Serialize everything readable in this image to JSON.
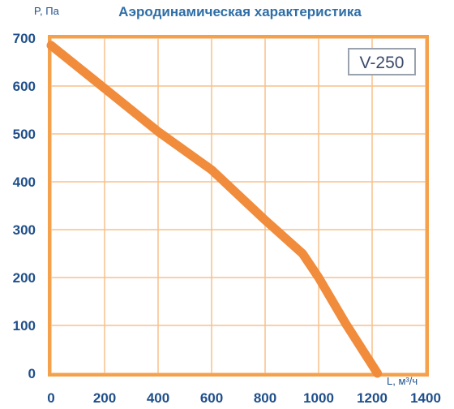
{
  "chart_data": {
    "type": "line",
    "title": "Аэродинамическая  характеристика",
    "xlabel": "L, м³/ч",
    "ylabel": "P, Па",
    "xlim": [
      0,
      1400
    ],
    "ylim": [
      0,
      700
    ],
    "x_ticks": [
      "0",
      "200",
      "400",
      "600",
      "800",
      "1000",
      "1200",
      "1400"
    ],
    "y_ticks": [
      "0",
      "100",
      "200",
      "300",
      "400",
      "500",
      "600",
      "700"
    ],
    "annotation": "V-250",
    "grid": true,
    "colors": {
      "line": "#f08c3c",
      "frame": "#f5a04a",
      "grid": "#f7c08a",
      "tick_text": "#1f4f8a",
      "title": "#2e6ea6"
    },
    "series": [
      {
        "x": [
          0,
          200,
          400,
          600,
          800,
          940,
          1000,
          1100,
          1220
        ],
        "y": [
          685,
          595,
          505,
          425,
          320,
          250,
          200,
          105,
          0
        ]
      }
    ]
  }
}
